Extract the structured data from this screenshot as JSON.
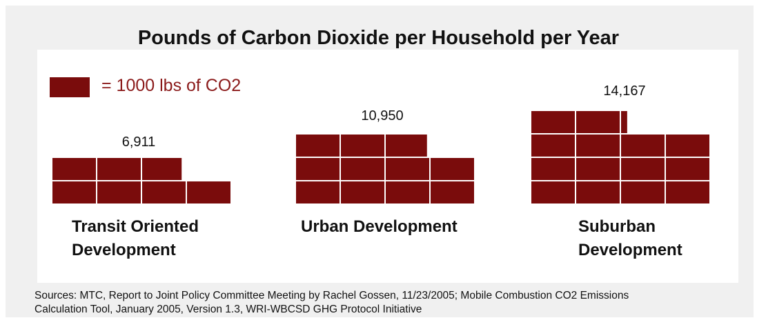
{
  "title": "Pounds of Carbon Dioxide per Household per Year",
  "legend": {
    "text": "= 1000 lbs of CO2",
    "color": "#7a0c0c"
  },
  "source": {
    "line1": "Sources: MTC, Report to Joint Policy Committee Meeting by Rachel Gossen, 11/23/2005; Mobile Combustion CO2 Emissions",
    "line2": "Calculation Tool, January 2005, Version 1.3, WRI-WBCSD GHG Protocol Initiative"
  },
  "chart_data": {
    "type": "bar",
    "unit_per_block": 1000,
    "categories": [
      {
        "line1": "Transit Oriented",
        "line2": "Development",
        "value": 6911,
        "label": "6,911"
      },
      {
        "line1": "Urban Development",
        "line2": "",
        "value": 10950,
        "label": "10,950"
      },
      {
        "line1": "Suburban",
        "line2": "Development",
        "value": 14167,
        "label": "14,167"
      }
    ],
    "colors": {
      "block": "#7a0c0c",
      "grid": "#ffffff"
    }
  }
}
